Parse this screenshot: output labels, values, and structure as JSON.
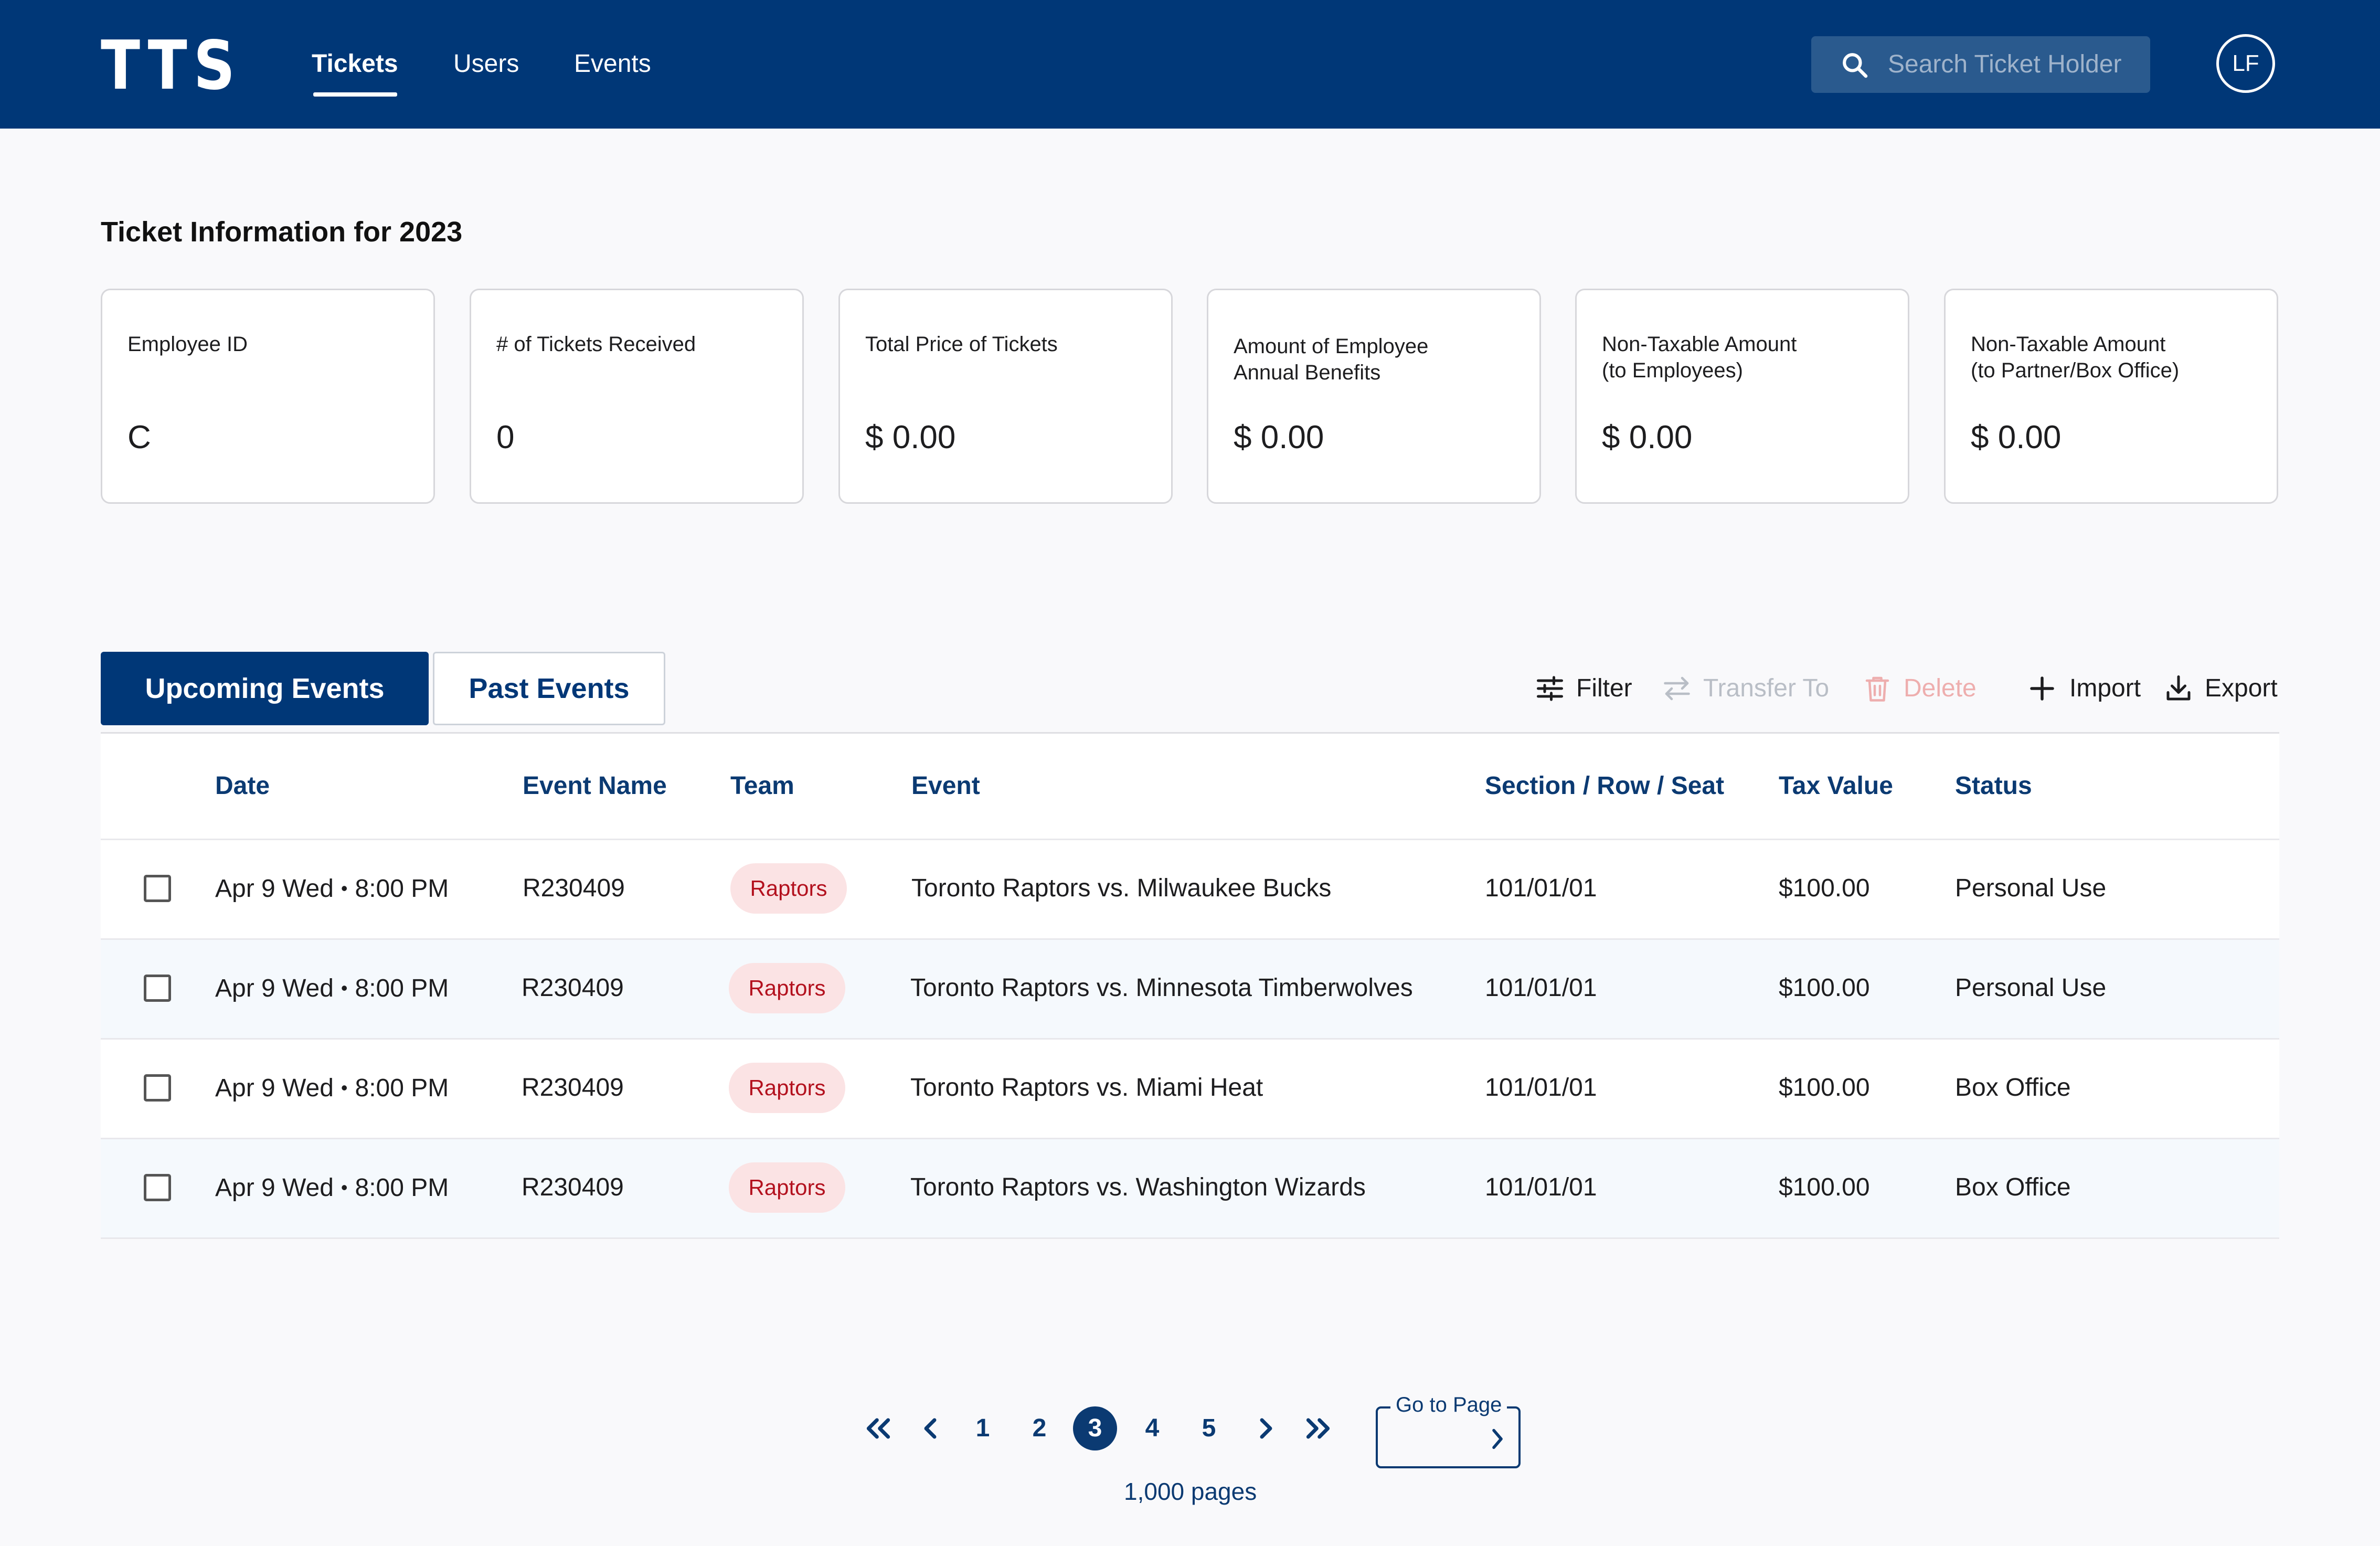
{
  "app": {
    "logo": "TTS"
  },
  "nav": {
    "items": [
      {
        "label": "Tickets",
        "active": true
      },
      {
        "label": "Users",
        "active": false
      },
      {
        "label": "Events",
        "active": false
      }
    ]
  },
  "search": {
    "placeholder": "Search Ticket Holder",
    "icon": "search-icon"
  },
  "user": {
    "initials": "LF"
  },
  "page": {
    "title": "Ticket Information for 2023"
  },
  "cards": [
    {
      "label": "Employee ID",
      "value": "C"
    },
    {
      "label": "# of Tickets Received",
      "value": "0"
    },
    {
      "label": "Total Price of Tickets",
      "value": "$ 0.00"
    },
    {
      "label": "Amount of Employee\nAnnual Benefits",
      "value": "$ 0.00"
    },
    {
      "label": "Non-Taxable Amount\n(to Employees)",
      "value": "$ 0.00"
    },
    {
      "label": "Non-Taxable Amount\n(to Partner/Box Office)",
      "value": "$ 0.00"
    }
  ],
  "tabs": {
    "upcoming": "Upcoming Events",
    "past": "Past Events",
    "active": "upcoming"
  },
  "toolbar": {
    "filter": "Filter",
    "transfer": "Transfer To",
    "delete": "Delete",
    "import": "Import",
    "export": "Export"
  },
  "table": {
    "headers": {
      "date": "Date",
      "event_name": "Event Name",
      "team": "Team",
      "event": "Event",
      "seat": "Section / Row / Seat",
      "tax": "Tax Value",
      "status": "Status"
    },
    "rows": [
      {
        "date": "Apr 9 Wed",
        "time": "8:00 PM",
        "event_name": "R230409",
        "team": "Raptors",
        "event": "Toronto Raptors vs. Milwaukee Bucks",
        "seat": "101/01/01",
        "tax": "$100.00",
        "status": "Personal Use"
      },
      {
        "date": "Apr 9 Wed",
        "time": "8:00 PM",
        "event_name": "R230409",
        "team": "Raptors",
        "event": "Toronto Raptors vs. Minnesota Timberwolves",
        "seat": "101/01/01",
        "tax": "$100.00",
        "status": "Personal Use"
      },
      {
        "date": "Apr 9 Wed",
        "time": "8:00 PM",
        "event_name": "R230409",
        "team": "Raptors",
        "event": "Toronto Raptors vs. Miami Heat",
        "seat": "101/01/01",
        "tax": "$100.00",
        "status": "Box Office"
      },
      {
        "date": "Apr 9 Wed",
        "time": "8:00 PM",
        "event_name": "R230409",
        "team": "Raptors",
        "event": "Toronto Raptors vs. Washington Wizards",
        "seat": "101/01/01",
        "tax": "$100.00",
        "status": "Box Office"
      }
    ]
  },
  "pagination": {
    "pages": [
      "1",
      "2",
      "3",
      "4",
      "5"
    ],
    "current": "3",
    "goto_label": "Go to Page",
    "total": "1,000 pages"
  },
  "colors": {
    "brand": "#003777",
    "badge_bg": "#fbe3e4",
    "badge_text": "#b3111e"
  }
}
